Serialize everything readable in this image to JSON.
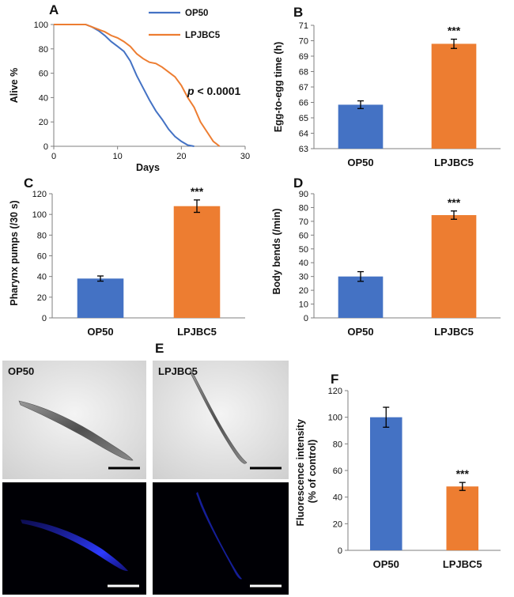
{
  "figure": {
    "colors": {
      "op50": "#4472c4",
      "lpjbc5": "#ed7d31",
      "axis": "#7f7f7f",
      "text": "#111111"
    }
  },
  "chart_data": [
    {
      "panel": "A",
      "type": "line",
      "xlabel": "Days",
      "ylabel": "Alive %",
      "xlim": [
        0,
        30
      ],
      "ylim": [
        0,
        100
      ],
      "xticks": [
        "0",
        "10",
        "20",
        "30"
      ],
      "yticks": [
        "0",
        "20",
        "40",
        "60",
        "80",
        "100"
      ],
      "legend_position": "top-right",
      "annotation": {
        "text_italic": "p",
        "text_rest": " < 0.0001"
      },
      "series": [
        {
          "name": "OP50",
          "color": "#4472c4",
          "x": [
            0,
            5,
            6,
            7,
            8,
            9,
            10,
            11,
            12,
            13,
            14,
            15,
            16,
            17,
            18,
            19,
            20,
            21,
            22
          ],
          "y": [
            100,
            100,
            98,
            95,
            91,
            86,
            82,
            78,
            70,
            58,
            48,
            38,
            29,
            22,
            14,
            8,
            4,
            1,
            0
          ]
        },
        {
          "name": "LPJBC5",
          "color": "#ed7d31",
          "x": [
            0,
            5,
            6,
            7,
            8,
            9,
            10,
            11,
            12,
            13,
            14,
            15,
            16,
            17,
            18,
            19,
            20,
            21,
            22,
            23,
            24,
            25,
            26
          ],
          "y": [
            100,
            100,
            98,
            96,
            94,
            91,
            89,
            86,
            82,
            76,
            72,
            69,
            68,
            65,
            61,
            57,
            50,
            40,
            32,
            20,
            12,
            4,
            0
          ]
        }
      ]
    },
    {
      "panel": "B",
      "type": "bar",
      "categories": [
        "OP50",
        "LPJBC5"
      ],
      "values": [
        65.85,
        69.8
      ],
      "errors": [
        0.25,
        0.3
      ],
      "colors": [
        "#4472c4",
        "#ed7d31"
      ],
      "ylabel": "Egg-to-egg time (h)",
      "ylim": [
        63,
        71
      ],
      "yticks": [
        "63",
        "64",
        "65",
        "66",
        "67",
        "68",
        "69",
        "70",
        "71"
      ],
      "significance": [
        "",
        "***"
      ]
    },
    {
      "panel": "C",
      "type": "bar",
      "categories": [
        "OP50",
        "LPJBC5"
      ],
      "values": [
        38,
        108
      ],
      "errors": [
        2.5,
        6
      ],
      "colors": [
        "#4472c4",
        "#ed7d31"
      ],
      "ylabel": "Pharynx pumps (/30 s)",
      "ylim": [
        0,
        120
      ],
      "yticks": [
        "0",
        "20",
        "40",
        "60",
        "80",
        "100",
        "120"
      ],
      "significance": [
        "",
        "***"
      ]
    },
    {
      "panel": "D",
      "type": "bar",
      "categories": [
        "OP50",
        "LPJBC5"
      ],
      "values": [
        30,
        74.5
      ],
      "errors": [
        3.5,
        3
      ],
      "colors": [
        "#4472c4",
        "#ed7d31"
      ],
      "ylabel": "Body bends (/min)",
      "ylim": [
        0,
        90
      ],
      "yticks": [
        "0",
        "10",
        "20",
        "30",
        "40",
        "50",
        "60",
        "70",
        "80",
        "90"
      ],
      "significance": [
        "",
        "***"
      ]
    },
    {
      "panel": "F",
      "type": "bar",
      "categories": [
        "OP50",
        "LPJBC5"
      ],
      "values": [
        100,
        48
      ],
      "errors": [
        7.5,
        3
      ],
      "colors": [
        "#4472c4",
        "#ed7d31"
      ],
      "ylabel": "Fluorescence intensity (% of control)",
      "ylabel_lines": [
        "Fluorescence intensity",
        "(% of control)"
      ],
      "ylim": [
        0,
        120
      ],
      "yticks": [
        "0",
        "20",
        "40",
        "60",
        "80",
        "100",
        "120"
      ],
      "significance": [
        "",
        "***"
      ]
    }
  ],
  "images": {
    "panel": "E",
    "labels": [
      "OP50",
      "LPJBC5"
    ]
  }
}
